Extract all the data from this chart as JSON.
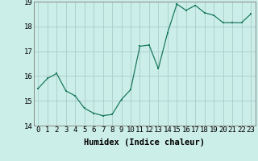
{
  "x": [
    0,
    1,
    2,
    3,
    4,
    5,
    6,
    7,
    8,
    9,
    10,
    11,
    12,
    13,
    14,
    15,
    16,
    17,
    18,
    19,
    20,
    21,
    22,
    23
  ],
  "y": [
    15.5,
    15.9,
    16.1,
    15.4,
    15.2,
    14.7,
    14.5,
    14.4,
    14.45,
    15.05,
    15.45,
    17.2,
    17.25,
    16.3,
    17.75,
    18.9,
    18.65,
    18.85,
    18.55,
    18.45,
    18.15,
    18.15,
    18.15,
    18.5
  ],
  "line_color": "#1a7a5e",
  "marker_color": "#1a7a5e",
  "bg_color": "#cceee8",
  "grid_color": "#aacccc",
  "xlabel": "Humidex (Indice chaleur)",
  "ylim": [
    14,
    19
  ],
  "xlim": [
    -0.5,
    23.5
  ],
  "yticks": [
    14,
    15,
    16,
    17,
    18,
    19
  ],
  "xticks": [
    0,
    1,
    2,
    3,
    4,
    5,
    6,
    7,
    8,
    9,
    10,
    11,
    12,
    13,
    14,
    15,
    16,
    17,
    18,
    19,
    20,
    21,
    22,
    23
  ],
  "xlabel_fontsize": 7.5,
  "tick_fontsize": 6.5
}
